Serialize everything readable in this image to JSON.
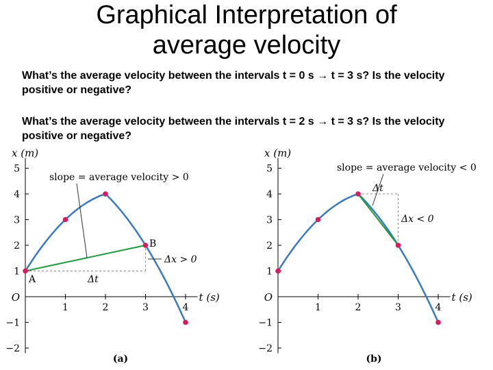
{
  "title_line1": "Graphical Interpretation of",
  "title_line2": "average velocity",
  "question1": "What’s the average velocity between the intervals t = 0 s → t = 3 s? Is the velocity positive or negative?",
  "question2": "What’s the average velocity between the intervals t = 2 s → t = 3 s? Is the velocity positive or negative?",
  "colors": {
    "curve": "#3a78c2",
    "secant": "#1f9a3e",
    "point": "#d81b60",
    "guide": "#888888"
  },
  "chart_data": [
    {
      "type": "line",
      "panel_label": "(a)",
      "xlabel": "t (s)",
      "ylabel": "x (m)",
      "origin_label": "O",
      "x_ticks": [
        "1",
        "2",
        "3",
        "4"
      ],
      "y_ticks": [
        "5",
        "4",
        "3",
        "2",
        "1",
        "−1",
        "−2"
      ],
      "xlim": [
        0,
        4.3
      ],
      "ylim": [
        -2.2,
        5.4
      ],
      "points": [
        {
          "t": 0,
          "x": 1
        },
        {
          "t": 1,
          "x": 3
        },
        {
          "t": 2,
          "x": 4
        },
        {
          "t": 3,
          "x": 2
        },
        {
          "t": 4,
          "x": -1
        }
      ],
      "secant": {
        "from_t": 0,
        "to_t": 3
      },
      "annotations": {
        "slope": "slope = average velocity > 0",
        "A": "A",
        "B": "B",
        "dt": "Δt",
        "dx": "Δx > 0"
      }
    },
    {
      "type": "line",
      "panel_label": "(b)",
      "xlabel": "t (s)",
      "ylabel": "x (m)",
      "origin_label": "O",
      "x_ticks": [
        "1",
        "2",
        "3",
        "4"
      ],
      "y_ticks": [
        "5",
        "4",
        "3",
        "2",
        "1",
        "−1",
        "−2"
      ],
      "xlim": [
        0,
        4.3
      ],
      "ylim": [
        -2.2,
        5.4
      ],
      "points": [
        {
          "t": 0,
          "x": 1
        },
        {
          "t": 1,
          "x": 3
        },
        {
          "t": 2,
          "x": 4
        },
        {
          "t": 3,
          "x": 2
        },
        {
          "t": 4,
          "x": -1
        }
      ],
      "secant": {
        "from_t": 2,
        "to_t": 3
      },
      "annotations": {
        "slope": "slope = average velocity < 0",
        "dt": "Δt",
        "dx": "Δx < 0"
      }
    }
  ]
}
